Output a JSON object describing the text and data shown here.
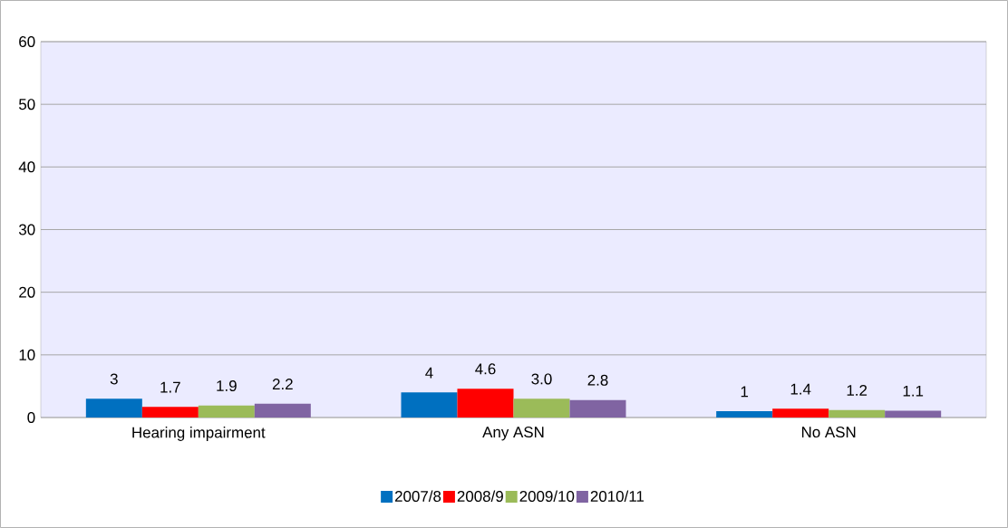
{
  "chart_data": {
    "type": "bar",
    "categories": [
      "Hearing impairment",
      "Any ASN",
      "No ASN"
    ],
    "series": [
      {
        "name": "2007/8",
        "color": "#0070c0",
        "values": [
          3,
          4,
          1
        ],
        "value_labels": [
          "3",
          "4",
          "1"
        ]
      },
      {
        "name": "2008/9",
        "color": "#ff0000",
        "values": [
          1.7,
          4.6,
          1.4
        ],
        "value_labels": [
          "1.7",
          "4.6",
          "1.4"
        ]
      },
      {
        "name": "2009/10",
        "color": "#9bbb59",
        "values": [
          1.9,
          3.0,
          1.2
        ],
        "value_labels": [
          "1.9",
          "3.0",
          "1.2"
        ]
      },
      {
        "name": "2010/11",
        "color": "#8064a2",
        "values": [
          2.2,
          2.8,
          1.1
        ],
        "value_labels": [
          "2.2",
          "2.8",
          "1.1"
        ]
      }
    ],
    "ylim": [
      0,
      60
    ],
    "yticks": [
      0,
      10,
      20,
      30,
      40,
      50,
      60
    ],
    "grid": "y",
    "legend": "bottom"
  }
}
